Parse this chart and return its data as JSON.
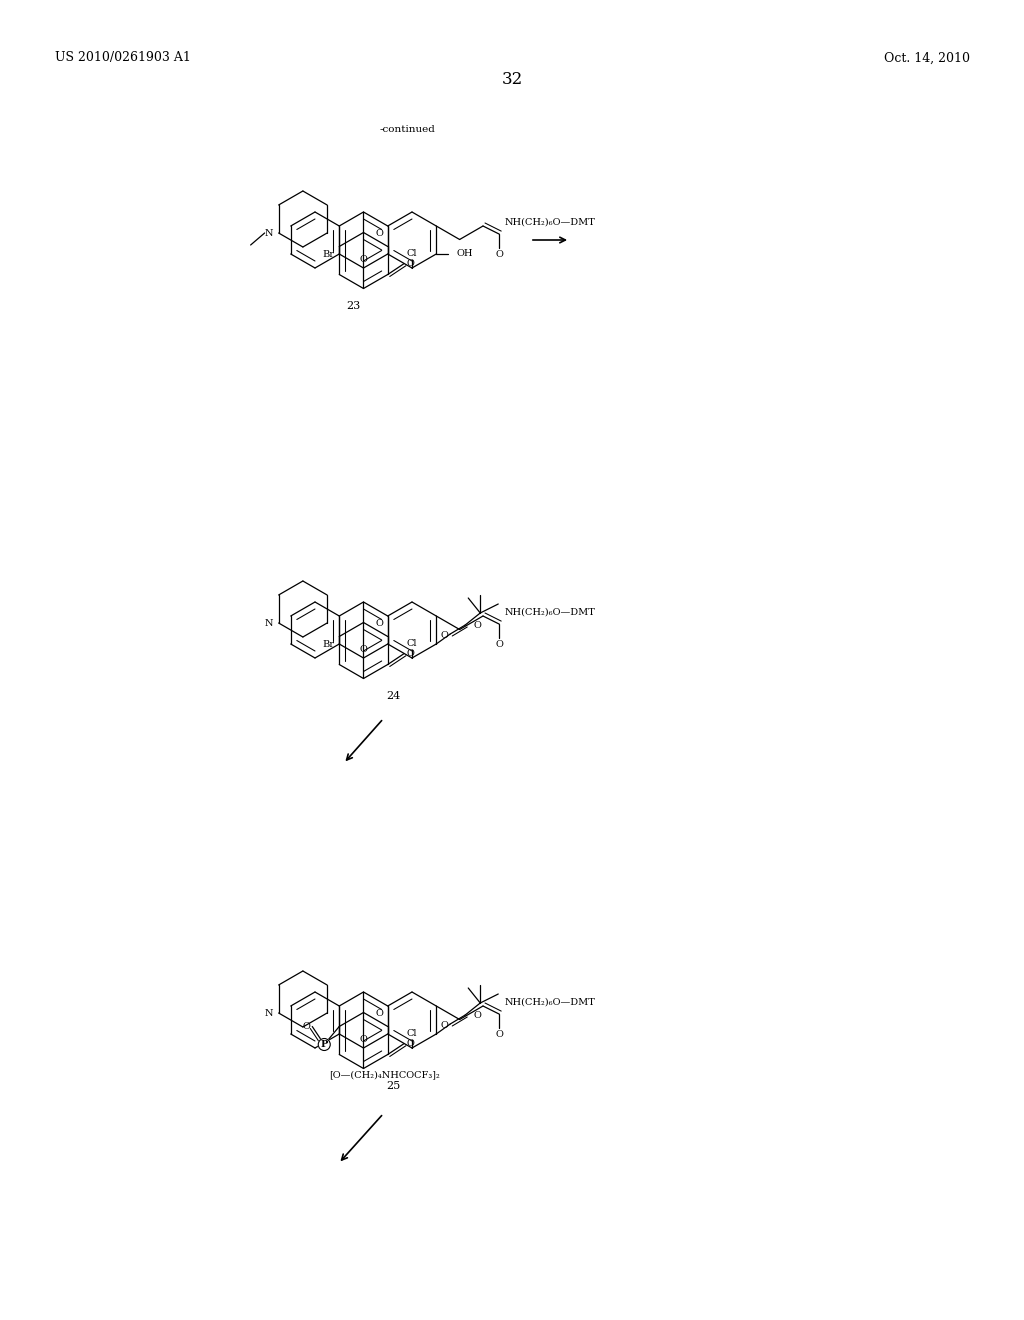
{
  "background_color": "#ffffff",
  "page_number": "32",
  "left_header": "US 2010/0261903 A1",
  "right_header": "Oct. 14, 2010",
  "continued_label": "-continued",
  "compound_23_label": "23",
  "compound_24_label": "24",
  "compound_25_label": "25",
  "text_color": "#000000",
  "line_color": "#000000",
  "font_size_header": 9,
  "font_size_label": 8,
  "font_size_page": 12,
  "struct_font_size": 7,
  "lw": 0.9
}
